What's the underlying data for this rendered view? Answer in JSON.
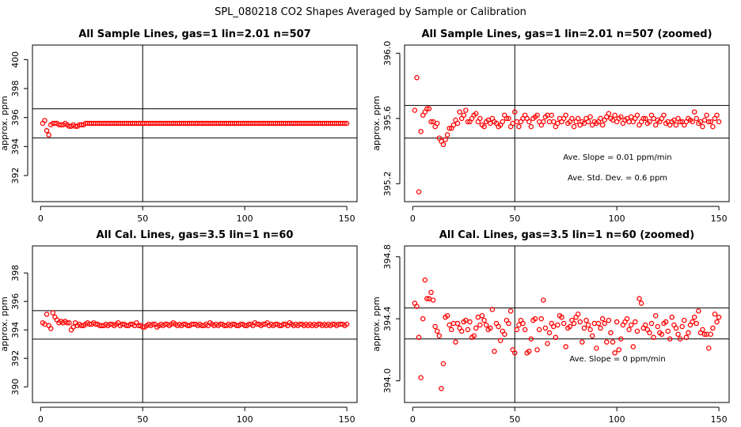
{
  "figure_title": "SPL_080218  CO2 Shapes Averaged by Sample or Calibration",
  "chart_data": [
    {
      "type": "scatter",
      "title": "All Sample Lines, gas=1 lin=2.01 n=507",
      "xlabel": "",
      "ylabel": "approx. ppm",
      "xlim": [
        -4,
        155
      ],
      "ylim": [
        390.2,
        401.0
      ],
      "xticks": [
        0,
        50,
        100,
        150
      ],
      "yticks": [
        392,
        394,
        396,
        398,
        400
      ],
      "ytick_labels": [
        "392",
        "394",
        "396",
        "398",
        "400"
      ],
      "hlines": [
        394.6,
        396.6
      ],
      "vlines": [
        50
      ],
      "annotations": [],
      "series": [
        {
          "name": "averaged shape",
          "color": "#ff0000",
          "x_start": 1,
          "y": [
            395.6,
            395.8,
            395.1,
            394.8,
            395.5,
            395.6,
            395.6,
            395.6,
            395.5,
            395.5,
            395.5,
            395.6,
            395.5,
            395.4,
            395.4,
            395.5,
            395.4,
            395.4,
            395.5,
            395.5,
            395.5,
            395.6,
            395.6,
            395.6,
            395.6,
            395.6,
            395.6,
            395.6,
            395.6,
            395.6,
            395.6,
            395.6,
            395.6,
            395.6,
            395.6,
            395.6,
            395.6,
            395.6,
            395.6,
            395.6,
            395.6,
            395.6,
            395.6,
            395.6,
            395.6,
            395.6,
            395.6,
            395.6,
            395.6,
            395.6,
            395.6,
            395.6,
            395.6,
            395.6,
            395.6,
            395.6,
            395.6,
            395.6,
            395.6,
            395.6,
            395.6,
            395.6,
            395.6,
            395.6,
            395.6,
            395.6,
            395.6,
            395.6,
            395.6,
            395.6,
            395.6,
            395.6,
            395.6,
            395.6,
            395.6,
            395.6,
            395.6,
            395.6,
            395.6,
            395.6,
            395.6,
            395.6,
            395.6,
            395.6,
            395.6,
            395.6,
            395.6,
            395.6,
            395.6,
            395.6,
            395.6,
            395.6,
            395.6,
            395.6,
            395.6,
            395.6,
            395.6,
            395.6,
            395.6,
            395.6,
            395.6,
            395.6,
            395.6,
            395.6,
            395.6,
            395.6,
            395.6,
            395.6,
            395.6,
            395.6,
            395.6,
            395.6,
            395.6,
            395.6,
            395.6,
            395.6,
            395.6,
            395.6,
            395.6,
            395.6,
            395.6,
            395.6,
            395.6,
            395.6,
            395.6,
            395.6,
            395.6,
            395.6,
            395.6,
            395.6,
            395.6,
            395.6,
            395.6,
            395.6,
            395.6,
            395.6,
            395.6,
            395.6,
            395.6,
            395.6,
            395.6,
            395.6,
            395.6,
            395.6,
            395.6,
            395.6,
            395.6,
            395.6,
            395.6,
            395.6
          ]
        }
      ]
    },
    {
      "type": "scatter",
      "title": "All Sample Lines, gas=1 lin=2.01 n=507 (zoomed)",
      "xlabel": "",
      "ylabel": "approx. ppm",
      "xlim": [
        -4,
        155
      ],
      "ylim": [
        395.09,
        396.05
      ],
      "xticks": [
        0,
        50,
        100,
        150
      ],
      "yticks": [
        395.2,
        395.6,
        396.0
      ],
      "ytick_labels": [
        "395.2",
        "395.6",
        "396.0"
      ],
      "hlines": [
        395.48,
        395.68
      ],
      "vlines": [
        50
      ],
      "annotations": [
        "Ave. Slope =  0.01  ppm/min",
        "Ave. Std. Dev. =  0.6  ppm"
      ],
      "series": [
        {
          "name": "averaged shape",
          "color": "#ff0000",
          "x_start": 1,
          "y": [
            395.65,
            395.85,
            395.15,
            395.52,
            395.62,
            395.64,
            395.66,
            395.66,
            395.58,
            395.58,
            395.55,
            395.57,
            395.48,
            395.46,
            395.44,
            395.47,
            395.5,
            395.54,
            395.54,
            395.56,
            395.59,
            395.57,
            395.64,
            395.6,
            395.62,
            395.65,
            395.58,
            395.58,
            395.6,
            395.62,
            395.63,
            395.58,
            395.6,
            395.56,
            395.55,
            395.58,
            395.59,
            395.57,
            395.6,
            395.58,
            395.57,
            395.55,
            395.56,
            395.58,
            395.62,
            395.6,
            395.6,
            395.55,
            395.57,
            395.64,
            395.58,
            395.55,
            395.58,
            395.6,
            395.62,
            395.6,
            395.58,
            395.55,
            395.6,
            395.61,
            395.62,
            395.58,
            395.56,
            395.58,
            395.61,
            395.62,
            395.58,
            395.62,
            395.58,
            395.55,
            395.57,
            395.6,
            395.58,
            395.6,
            395.62,
            395.57,
            395.58,
            395.6,
            395.55,
            395.58,
            395.6,
            395.56,
            395.58,
            395.57,
            395.6,
            395.58,
            395.61,
            395.56,
            395.58,
            395.57,
            395.58,
            395.6,
            395.56,
            395.59,
            395.61,
            395.63,
            395.6,
            395.59,
            395.62,
            395.58,
            395.6,
            395.61,
            395.57,
            395.59,
            395.6,
            395.58,
            395.61,
            395.58,
            395.6,
            395.62,
            395.56,
            395.58,
            395.6,
            395.6,
            395.57,
            395.58,
            395.62,
            395.6,
            395.56,
            395.59,
            395.58,
            395.6,
            395.62,
            395.57,
            395.58,
            395.56,
            395.58,
            395.59,
            395.56,
            395.6,
            395.58,
            395.58,
            395.56,
            395.58,
            395.6,
            395.59,
            395.58,
            395.64,
            395.6,
            395.57,
            395.58,
            395.55,
            395.59,
            395.62,
            395.58,
            395.58,
            395.55,
            395.6,
            395.62,
            395.58
          ]
        }
      ]
    },
    {
      "type": "scatter",
      "title": "All Cal. Lines, gas=3.5 lin=1 n=60",
      "xlabel": "",
      "ylabel": "approx. ppm",
      "xlim": [
        -4,
        155
      ],
      "ylim": [
        388.9,
        399.9
      ],
      "xticks": [
        0,
        50,
        100,
        150
      ],
      "yticks": [
        390,
        392,
        394,
        396,
        398
      ],
      "ytick_labels": [
        "390",
        "392",
        "394",
        "396",
        "398"
      ],
      "hlines": [
        393.35,
        395.35
      ],
      "vlines": [
        50
      ],
      "annotations": [],
      "series": [
        {
          "name": "averaged shape",
          "color": "#ff0000",
          "x_start": 1,
          "y": [
            394.5,
            394.4,
            395.1,
            394.3,
            394.1,
            395.2,
            394.9,
            394.7,
            394.5,
            394.6,
            394.5,
            394.6,
            394.5,
            394.5,
            394.0,
            394.2,
            394.5,
            394.3,
            394.4,
            394.3,
            394.3,
            394.4,
            394.5,
            394.4,
            394.4,
            394.5,
            394.4,
            394.4,
            394.3,
            394.3,
            394.3,
            394.4,
            394.3,
            394.4,
            394.4,
            394.3,
            394.4,
            394.5,
            394.3,
            394.4,
            394.4,
            394.3,
            394.3,
            394.4,
            394.4,
            394.3,
            394.5,
            394.3,
            394.3,
            394.2,
            394.2,
            394.3,
            394.4,
            394.3,
            394.4,
            394.4,
            394.2,
            394.3,
            394.4,
            394.3,
            394.4,
            394.4,
            394.3,
            394.4,
            394.5,
            394.4,
            394.3,
            394.4,
            394.3,
            394.4,
            394.4,
            394.3,
            394.3,
            394.4,
            394.4,
            394.4,
            394.3,
            394.4,
            394.3,
            394.3,
            394.4,
            394.3,
            394.5,
            394.4,
            394.3,
            394.4,
            394.3,
            394.4,
            394.4,
            394.3,
            394.3,
            394.4,
            394.3,
            394.4,
            394.4,
            394.3,
            394.3,
            394.4,
            394.4,
            394.3,
            394.3,
            394.4,
            394.4,
            394.3,
            394.5,
            394.4,
            394.4,
            394.3,
            394.4,
            394.4,
            394.5,
            394.3,
            394.4,
            394.3,
            394.4,
            394.4,
            394.3,
            394.3,
            394.4,
            394.4,
            394.3,
            394.5,
            394.4,
            394.3,
            394.4,
            394.3,
            394.4,
            394.4,
            394.3,
            394.4,
            394.3,
            394.4,
            394.3,
            394.4,
            394.3,
            394.4,
            394.4,
            394.3,
            394.4,
            394.3,
            394.4,
            394.3,
            394.4,
            394.4,
            394.3,
            394.4,
            394.4,
            394.4,
            394.3,
            394.4
          ]
        }
      ]
    },
    {
      "type": "scatter",
      "title": "All Cal. Lines, gas=3.5 lin=1 n=60 (zoomed)",
      "xlabel": "",
      "ylabel": "approx. ppm",
      "xlim": [
        -4,
        155
      ],
      "ylim": [
        393.86,
        394.87
      ],
      "xticks": [
        0,
        50,
        100,
        150
      ],
      "yticks": [
        394.0,
        394.4,
        394.8
      ],
      "ytick_labels": [
        "394.0",
        "394.4",
        "394.8"
      ],
      "hlines": [
        394.27,
        394.47
      ],
      "vlines": [
        50
      ],
      "annotations": [
        "Ave. Slope =  0  ppm/min"
      ],
      "series": [
        {
          "name": "averaged shape",
          "color": "#ff0000",
          "x_start": 1,
          "y": [
            394.5,
            394.48,
            394.28,
            394.02,
            394.4,
            394.65,
            394.53,
            394.53,
            394.57,
            394.52,
            394.35,
            394.32,
            394.29,
            393.95,
            394.11,
            394.41,
            394.42,
            394.36,
            394.33,
            394.37,
            394.25,
            394.37,
            394.34,
            394.32,
            394.38,
            394.39,
            394.33,
            394.38,
            394.28,
            394.29,
            394.34,
            394.41,
            394.36,
            394.42,
            394.39,
            394.36,
            394.33,
            394.34,
            394.46,
            394.19,
            394.37,
            394.35,
            394.26,
            394.32,
            394.3,
            394.39,
            394.37,
            394.45,
            394.2,
            394.18,
            394.33,
            394.36,
            394.39,
            394.37,
            394.33,
            394.18,
            394.19,
            394.27,
            394.39,
            394.4,
            394.2,
            394.33,
            394.4,
            394.52,
            394.34,
            394.24,
            394.31,
            394.37,
            394.35,
            394.28,
            394.36,
            394.42,
            394.41,
            394.37,
            394.22,
            394.34,
            394.35,
            394.39,
            394.37,
            394.41,
            394.43,
            394.38,
            394.25,
            394.34,
            394.39,
            394.36,
            394.33,
            394.29,
            394.37,
            394.21,
            394.37,
            394.34,
            394.4,
            394.37,
            394.25,
            394.39,
            394.31,
            394.25,
            394.18,
            394.38,
            394.2,
            394.27,
            394.36,
            394.38,
            394.4,
            394.33,
            394.36,
            394.22,
            394.38,
            394.32,
            394.53,
            394.5,
            394.34,
            394.36,
            394.33,
            394.31,
            394.37,
            394.28,
            394.42,
            394.35,
            394.31,
            394.3,
            394.37,
            394.38,
            394.32,
            394.27,
            394.41,
            394.36,
            394.34,
            394.3,
            394.27,
            394.35,
            394.39,
            394.28,
            394.31,
            394.36,
            394.38,
            394.41,
            394.37,
            394.45,
            394.31,
            394.33,
            394.3,
            394.3,
            394.21,
            394.3,
            394.34,
            394.43,
            394.38,
            394.41
          ]
        }
      ]
    }
  ]
}
